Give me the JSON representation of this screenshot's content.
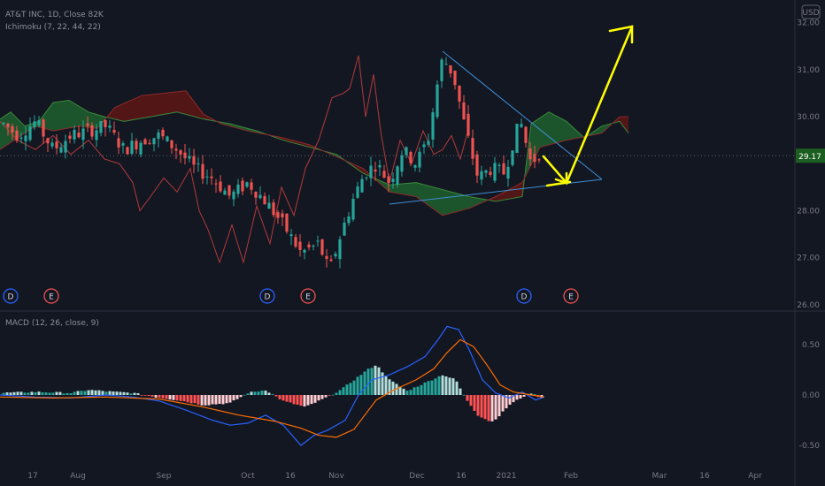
{
  "chart_data": {
    "type": "candlestick",
    "header": {
      "symbol": "AT&T INC, 1D, Close 82K",
      "indicator": "Ichimoku (7, 22, 44, 22)",
      "macd": "MACD (12, 26, close, 9)",
      "top_badge": "USD"
    },
    "price_axis": {
      "ticks": [
        {
          "label": "32.00",
          "v": 32
        },
        {
          "label": "31.00",
          "v": 31
        },
        {
          "label": "30.00",
          "v": 30
        },
        {
          "label": "28.00",
          "v": 28
        },
        {
          "label": "27.00",
          "v": 27
        },
        {
          "label": "26.00",
          "v": 26
        }
      ]
    },
    "current_price": {
      "label": "29.17",
      "value": 29.17
    },
    "macd_axis": {
      "ticks": [
        {
          "label": "0.50",
          "v": 0.5
        },
        {
          "label": "0.00",
          "v": 0
        },
        {
          "label": "-0.50",
          "v": -0.5
        }
      ]
    },
    "x_labels": [
      "17",
      "Aug",
      "Sep",
      "Oct",
      "16",
      "Nov",
      "Dec",
      "16",
      "2021",
      "Feb",
      "Mar",
      "16",
      "Apr"
    ],
    "events": [
      "D",
      "E",
      "D",
      "E",
      "D",
      "E"
    ],
    "colors": {
      "up": "#26a69a",
      "down": "#ef5350",
      "cloud_bull": "#1e5b2e",
      "cloud_bear": "#5b1616",
      "lagging": "#b23a3a",
      "trendline": "#3d8fd6",
      "arrow": "#ffff00",
      "macd_line": "#2962ff",
      "signal_line": "#ff6d00",
      "price_badge": "#1b5e20"
    }
  }
}
